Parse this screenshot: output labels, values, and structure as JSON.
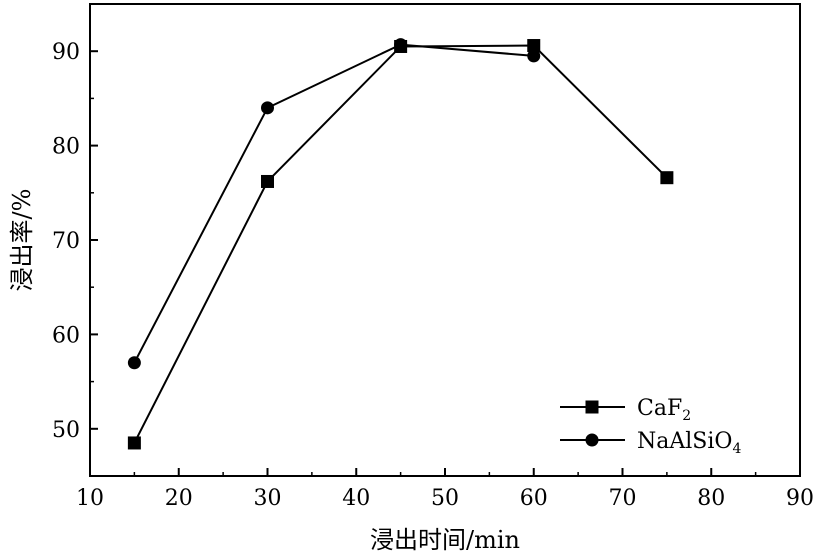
{
  "chart_data": {
    "type": "line",
    "title": "",
    "xlabel": "浸出时间/min",
    "ylabel": "浸出率/%",
    "xlim": [
      10,
      90
    ],
    "ylim": [
      45,
      95
    ],
    "xticks": [
      10,
      20,
      30,
      40,
      50,
      60,
      70,
      80,
      90
    ],
    "yticks": [
      50,
      60,
      70,
      80,
      90
    ],
    "grid": false,
    "legend_position": "bottom-right",
    "series": [
      {
        "name": "CaF2",
        "legend_main": "CaF",
        "legend_sub": "2",
        "marker": "square",
        "color": "#000000",
        "x": [
          15,
          30,
          45,
          60,
          75
        ],
        "y": [
          48.5,
          76.2,
          90.5,
          90.6,
          76.6
        ]
      },
      {
        "name": "NaAlSiO4",
        "legend_main": "NaAlSiO",
        "legend_sub": "4",
        "marker": "circle",
        "color": "#000000",
        "x": [
          15,
          30,
          45,
          60
        ],
        "y": [
          57.0,
          84.0,
          90.7,
          89.5
        ]
      }
    ]
  }
}
